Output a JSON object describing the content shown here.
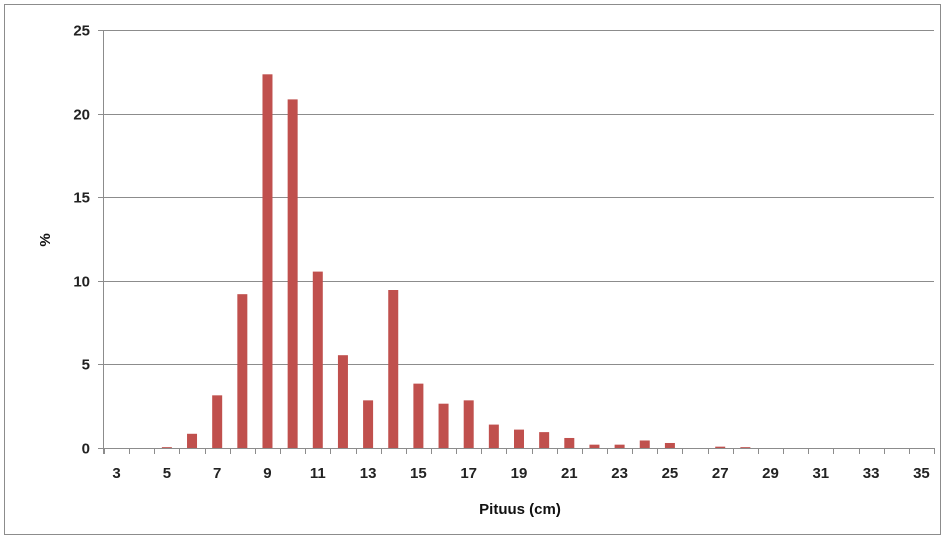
{
  "chart_data": {
    "type": "bar",
    "xlabel": "Pituus (cm)",
    "ylabel": "%",
    "ylim": [
      0,
      25
    ],
    "y_ticks": [
      0,
      5,
      10,
      15,
      20,
      25
    ],
    "x_tick_labels": [
      "3",
      "5",
      "7",
      "9",
      "11",
      "13",
      "15",
      "17",
      "19",
      "21",
      "23",
      "25",
      "27",
      "29",
      "31",
      "33",
      "35"
    ],
    "grid": "horizontal",
    "legend": "none",
    "categories": [
      3,
      4,
      5,
      6,
      7,
      8,
      9,
      10,
      11,
      12,
      13,
      14,
      15,
      16,
      17,
      18,
      19,
      20,
      21,
      22,
      23,
      24,
      25,
      26,
      27,
      28,
      29,
      30,
      31,
      32,
      33,
      34,
      35
    ],
    "values": [
      0,
      0,
      0.05,
      0.85,
      3.15,
      9.2,
      22.35,
      20.85,
      10.55,
      5.55,
      2.85,
      9.45,
      3.85,
      2.65,
      2.85,
      1.4,
      1.1,
      0.95,
      0.6,
      0.2,
      0.2,
      0.45,
      0.3,
      0,
      0.08,
      0.05,
      0,
      0,
      0,
      0,
      0,
      0,
      0
    ],
    "bar_color": "#C0504D",
    "grid_color": "#8C8C8C"
  }
}
